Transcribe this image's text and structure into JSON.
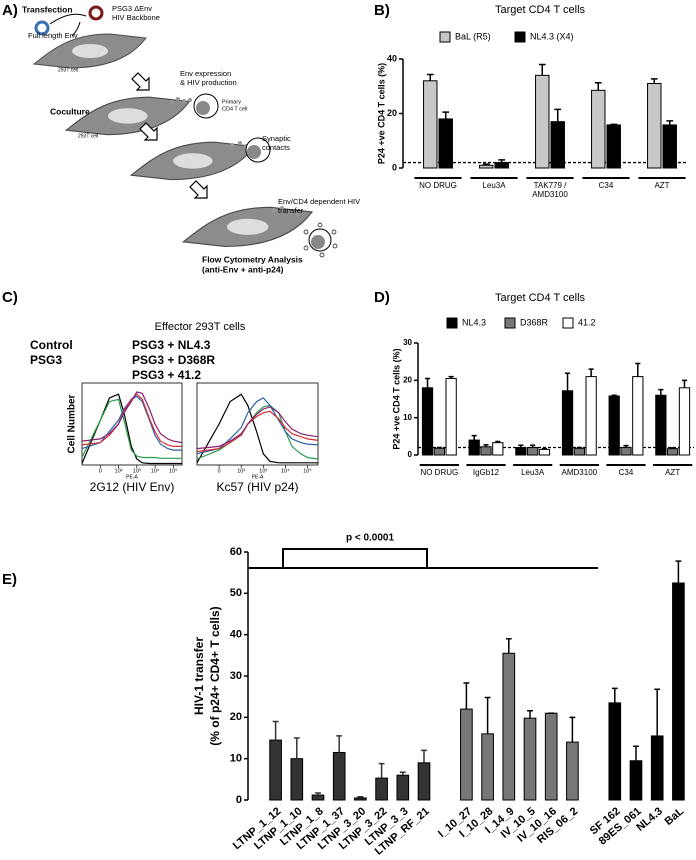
{
  "panel_labels": [
    "A)",
    "B)",
    "C)",
    "D)",
    "E)"
  ],
  "diagram": {
    "transfection": "Transfection",
    "env": "Full length Env",
    "psg3": "PSG3 ΔEnv",
    "backbone": "HIV Backbone",
    "cell1": "293T cell",
    "expression": "Env expression",
    "production": "& HIV production",
    "coculture": "Coculture",
    "primary": "Primary",
    "cd4": "CD4 T cell",
    "cell2": "293T cell",
    "synaptic": "Synaptic",
    "contacts": "contacts",
    "transfer1": "Env/CD4 dependent HIV",
    "transfer2": "transfer",
    "flow": "Flow Cytometry Analysis",
    "flow_sub": "(anti-Env + anti-p24)"
  },
  "chart_data": [
    {
      "type": "bar",
      "title": "Target CD4 T cells",
      "ylabel": "P24 +ve CD4 T cells (%)",
      "categories": [
        "NO DRUG",
        "Leu3A",
        "TAK779 / AMD3100",
        "C34",
        "AZT"
      ],
      "series": [
        {
          "name": "BaL (R5)",
          "color": "#c8c8c8",
          "values": [
            32,
            1,
            34,
            28.5,
            31
          ],
          "errors": [
            2.3,
            0.4,
            4,
            2.8,
            1.7
          ]
        },
        {
          "name": "NL4.3 (X4)",
          "color": "#000000",
          "values": [
            18,
            2,
            17,
            15.8,
            15.8
          ],
          "errors": [
            2.5,
            1,
            4.5,
            0.2,
            1.5
          ]
        }
      ],
      "ylim": [
        0,
        40
      ],
      "yticks": [
        0,
        20,
        40
      ],
      "threshold": 2
    },
    {
      "type": "line",
      "title": "Effector 293T cells",
      "ylabel": "Cell Number",
      "xlabel": "2G12 (HIV Env)",
      "xaxis_sublabel": "PE-A",
      "xscale": "symlog",
      "x": [
        -100,
        0,
        50,
        100,
        200,
        500,
        1000,
        2000,
        5000,
        10000,
        20000,
        50000,
        100000,
        300000
      ],
      "xlim": [
        -100,
        300000
      ],
      "xticks": [
        {
          "value": 0,
          "label": "0"
        },
        {
          "value": 100,
          "label": "10²"
        },
        {
          "value": 1000,
          "label": "10³"
        },
        {
          "value": 10000,
          "label": "10⁴"
        },
        {
          "value": 100000,
          "label": "10⁵"
        }
      ],
      "ylim": [
        0,
        110
      ],
      "series": [
        {
          "name": "Control",
          "color": "#000000",
          "values": [
            2,
            60,
            90,
            95,
            70,
            25,
            8,
            3,
            2,
            2,
            2,
            2,
            2,
            2
          ]
        },
        {
          "name": "PSG3",
          "color": "#2a9d4a",
          "values": [
            10,
            60,
            85,
            88,
            60,
            20,
            12,
            10,
            10,
            10,
            9,
            9,
            9,
            9
          ]
        },
        {
          "name": "PSG3 + NL4.3",
          "color": "#2b5fa8",
          "values": [
            22,
            30,
            45,
            60,
            75,
            88,
            92,
            85,
            60,
            40,
            28,
            22,
            20,
            20
          ]
        },
        {
          "name": "PSG3 + D368R",
          "color": "#d03030",
          "values": [
            27,
            30,
            40,
            55,
            72,
            88,
            95,
            88,
            62,
            45,
            32,
            27,
            25,
            25
          ]
        },
        {
          "name": "PSG3 + 41.2",
          "color": "#8a2070",
          "values": [
            32,
            35,
            42,
            55,
            70,
            85,
            98,
            96,
            75,
            55,
            42,
            35,
            32,
            30
          ]
        }
      ]
    },
    {
      "type": "line",
      "xlabel": "Kc57 (HIV p24)",
      "xaxis_sublabel": "PE-A",
      "xscale": "symlog",
      "x": [
        -100,
        0,
        50,
        100,
        200,
        500,
        1000,
        2000,
        5000,
        10000,
        20000,
        50000,
        100000,
        300000
      ],
      "xlim": [
        -100,
        300000
      ],
      "xticks": [
        {
          "value": 0,
          "label": "0"
        },
        {
          "value": 100,
          "label": "10²"
        },
        {
          "value": 1000,
          "label": "10³"
        },
        {
          "value": 10000,
          "label": "10⁴"
        },
        {
          "value": 100000,
          "label": "10⁵"
        }
      ],
      "ylim": [
        0,
        110
      ],
      "series": [
        {
          "color": "#000000",
          "values": [
            3,
            55,
            85,
            95,
            80,
            45,
            15,
            5,
            3,
            3,
            3,
            3,
            3,
            3
          ]
        },
        {
          "color": "#2a9d4a",
          "values": [
            8,
            20,
            30,
            40,
            55,
            70,
            78,
            80,
            70,
            45,
            25,
            15,
            10,
            8
          ]
        },
        {
          "color": "#2b5fa8",
          "values": [
            15,
            22,
            35,
            50,
            70,
            85,
            90,
            80,
            60,
            45,
            35,
            30,
            28,
            27
          ]
        },
        {
          "color": "#d03030",
          "values": [
            18,
            22,
            30,
            40,
            55,
            65,
            70,
            72,
            62,
            50,
            42,
            38,
            35,
            33
          ]
        },
        {
          "color": "#8a2070",
          "values": [
            22,
            25,
            32,
            42,
            55,
            68,
            75,
            78,
            70,
            58,
            48,
            42,
            40,
            38
          ]
        }
      ]
    },
    {
      "type": "bar",
      "title": "Target CD4 T cells",
      "ylabel": "P24 +ve CD4 T cells (%)",
      "categories": [
        "NO DRUG",
        "IgGb12",
        "Leu3A",
        "AMD3100",
        "C34",
        "AZT"
      ],
      "series": [
        {
          "name": "NL4.3",
          "color": "#000000",
          "values": [
            18,
            4,
            2,
            17.2,
            15.8,
            16
          ],
          "errors": [
            2.5,
            1.2,
            0.6,
            4.7,
            0.2,
            1.5
          ]
        },
        {
          "name": "D368R",
          "color": "#777777",
          "values": [
            1.8,
            2.2,
            2,
            1.8,
            2,
            1.7
          ],
          "errors": [
            0.2,
            0.5,
            0.6,
            0.2,
            0.5,
            0.2
          ]
        },
        {
          "name": "41.2",
          "color": "#ffffff",
          "values": [
            20.5,
            3.3,
            1.5,
            21,
            21,
            18
          ],
          "errors": [
            0.5,
            0.3,
            0.2,
            2,
            3.5,
            2
          ]
        }
      ],
      "ylim": [
        0,
        30
      ],
      "yticks": [
        0,
        10,
        20,
        30
      ],
      "threshold": 2
    },
    {
      "type": "bar",
      "ylabel": [
        "HIV-1 transfer",
        "(% of p24+ CD4+ T cells)"
      ],
      "annotation": "p < 0.0001",
      "categories": [
        "LTNP_1_12",
        "LTNP_1_10",
        "LTNP_1_8",
        "LTNP_1_37",
        "LTNP_3_20",
        "LTNP_3_22",
        "LTNP_3_3",
        "LTNP_RF_21",
        null,
        "I_10_27",
        "I_10_28",
        "I_14_9",
        "IV_10_5",
        "IV_10_16",
        "RIS_06_2",
        null,
        "SF 162",
        "89ES_061",
        "NL4.3",
        "BaL"
      ],
      "values": [
        14.5,
        10,
        1.2,
        11.5,
        0.5,
        5.3,
        6,
        9,
        null,
        22,
        16,
        35.5,
        19.8,
        21,
        14,
        null,
        23.5,
        9.5,
        15.5,
        52.5
      ],
      "errors": [
        4.5,
        5,
        0.5,
        4,
        0.3,
        3.5,
        0.7,
        3,
        null,
        6.3,
        8.8,
        3.5,
        1.8,
        0,
        6,
        null,
        3.5,
        3.5,
        11.3,
        5.3
      ],
      "colors": [
        "#333333",
        "#333333",
        "#333333",
        "#333333",
        "#333333",
        "#333333",
        "#333333",
        "#333333",
        null,
        "#777777",
        "#777777",
        "#777777",
        "#777777",
        "#777777",
        "#777777",
        null,
        "#000000",
        "#000000",
        "#000000",
        "#000000"
      ],
      "ylim": [
        0,
        60
      ],
      "yticks": [
        0,
        10,
        20,
        30,
        40,
        50,
        60
      ]
    }
  ]
}
